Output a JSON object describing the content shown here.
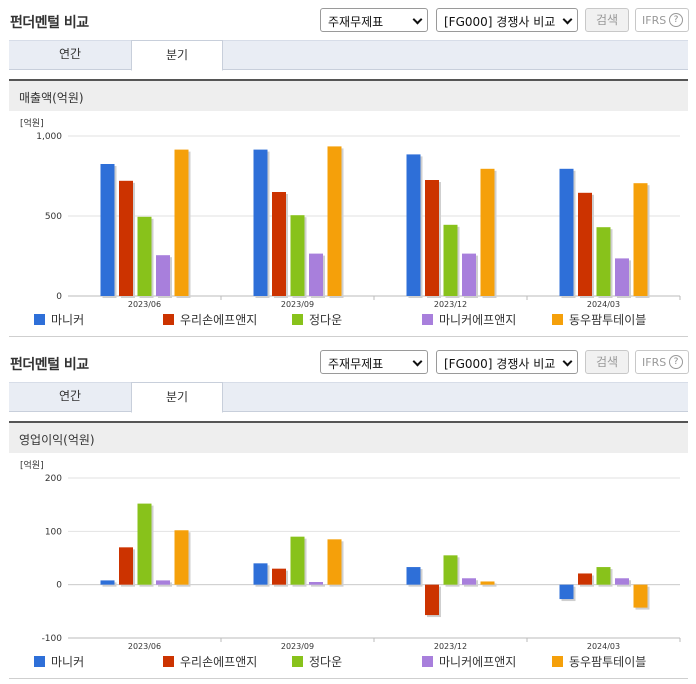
{
  "colors": {
    "series": [
      "#2e6fd8",
      "#cc3300",
      "#88c21b",
      "#a87fdc",
      "#f5a00a"
    ],
    "accent_title": "#333333"
  },
  "header": {
    "title": "펀더멘털 비교",
    "select_1": "주재무제표",
    "select_2": "[FG000] 경쟁사 비교",
    "search_button": "검색",
    "ifrs_button": "IFRS",
    "help_icon_text": "?"
  },
  "tabs": [
    {
      "label": "연간",
      "active": false
    },
    {
      "label": "분기",
      "active": true
    }
  ],
  "legend": [
    "마니커",
    "우리손에프앤지",
    "정다운",
    "마니커에프앤지",
    "동우팜투테이블"
  ],
  "charts": [
    {
      "heading": "매출액(억원)",
      "unit": "[억원]",
      "yticks": [
        "1,000",
        "500",
        "0"
      ]
    },
    {
      "heading": "영업이익(억원)",
      "unit": "[억원]",
      "yticks": [
        "200",
        "100",
        "0",
        "-100"
      ]
    }
  ],
  "chart_data": [
    {
      "type": "bar",
      "title": "매출액(억원)",
      "ylabel": "[억원]",
      "ylim": [
        0,
        1000
      ],
      "categories": [
        "2023/06",
        "2023/09",
        "2023/12",
        "2024/03"
      ],
      "series": [
        {
          "name": "마니커",
          "values": [
            825,
            915,
            885,
            795
          ]
        },
        {
          "name": "우리손에프앤지",
          "values": [
            720,
            650,
            725,
            645
          ]
        },
        {
          "name": "정다운",
          "values": [
            495,
            505,
            445,
            430
          ]
        },
        {
          "name": "마니커에프앤지",
          "values": [
            255,
            265,
            265,
            235
          ]
        },
        {
          "name": "동우팜투테이블",
          "values": [
            915,
            935,
            795,
            705
          ]
        }
      ],
      "grid": true,
      "legend_position": "bottom"
    },
    {
      "type": "bar",
      "title": "영업이익(억원)",
      "ylabel": "[억원]",
      "ylim": [
        -100,
        200
      ],
      "categories": [
        "2023/06",
        "2023/09",
        "2023/12",
        "2024/03"
      ],
      "series": [
        {
          "name": "마니커",
          "values": [
            8,
            40,
            33,
            -27
          ]
        },
        {
          "name": "우리손에프앤지",
          "values": [
            70,
            30,
            -57,
            21
          ]
        },
        {
          "name": "정다운",
          "values": [
            152,
            90,
            55,
            33
          ]
        },
        {
          "name": "마니커에프앤지",
          "values": [
            8,
            5,
            12,
            12
          ]
        },
        {
          "name": "동우팜투테이블",
          "values": [
            102,
            85,
            6,
            -43
          ]
        }
      ],
      "grid": true,
      "legend_position": "bottom"
    }
  ]
}
